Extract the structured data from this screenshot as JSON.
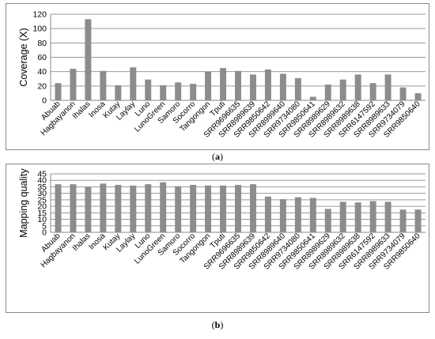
{
  "chart_data": [
    {
      "type": "bar",
      "caption": "a",
      "ylabel": "Coverage (X)",
      "xlabel": "",
      "ylim": [
        0,
        120
      ],
      "yticks": [
        0,
        20,
        40,
        60,
        80,
        100,
        120
      ],
      "grid": true,
      "bar_color": "#8c8c8c",
      "categories": [
        "Abuab",
        "Hagbayanon",
        "Ihalas",
        "Inosa",
        "Kutay",
        "Laylay",
        "Luno",
        "LunoGreen",
        "Samoro",
        "Socorro",
        "Tangongon",
        "Tputi",
        "SRR9696635",
        "SRR8989639",
        "SRR9850642",
        "SRR8989640",
        "SRR9734080",
        "SRR9850641",
        "SRR8989629",
        "SRR8989632",
        "SRR8989638",
        "SRR6147592",
        "SRR8989633",
        "SRR9734079",
        "SRR9850640"
      ],
      "values": [
        24,
        44,
        113,
        41,
        21,
        46,
        29,
        21,
        25,
        23,
        40,
        45,
        41,
        36,
        43,
        37,
        31,
        5,
        22,
        29,
        36,
        24,
        36,
        18,
        10
      ]
    },
    {
      "type": "bar",
      "caption": "b",
      "ylabel": "Mapping quality",
      "xlabel": "",
      "ylim": [
        0,
        45
      ],
      "yticks": [
        0,
        5,
        10,
        15,
        20,
        25,
        30,
        35,
        40,
        45
      ],
      "grid": true,
      "bar_color": "#8c8c8c",
      "categories": [
        "Abuab",
        "Hagbayanon",
        "Ihalas",
        "Inosa",
        "Kutay",
        "Laylay",
        "Luno",
        "LunoGreen",
        "Samoro",
        "Socorro",
        "Tangongon",
        "Tputi",
        "SRR9696635",
        "SRR8989639",
        "SRR9850642",
        "SRR8989640",
        "SRR9734080",
        "SRR9850641",
        "SRR8989629",
        "SRR8989632",
        "SRR8989638",
        "SRR6147592",
        "SRR8989633",
        "SRR9734079",
        "SRR9850640"
      ],
      "values": [
        37,
        37,
        35,
        37.5,
        36.5,
        36,
        37,
        38.5,
        35.5,
        36.5,
        36,
        36,
        36.5,
        37,
        27.5,
        25.5,
        27,
        26.5,
        18,
        23.5,
        23,
        24,
        23.5,
        17.5,
        17.5
      ]
    }
  ]
}
